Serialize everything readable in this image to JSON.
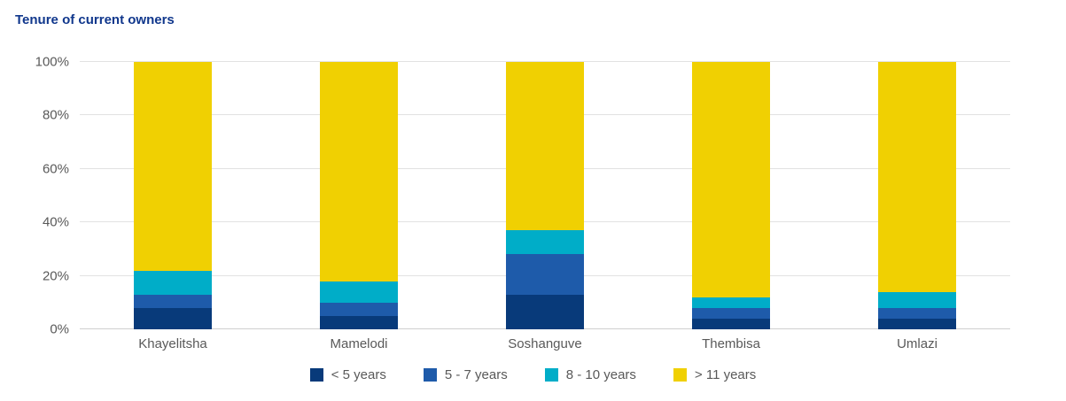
{
  "title": "Tenure of current owners",
  "colors": {
    "title": "#10378c",
    "axis_text": "#595959",
    "gridline": "#e2e2e2",
    "background": "#ffffff"
  },
  "chart_data": {
    "type": "bar",
    "stacked": true,
    "orientation": "vertical",
    "title": "Tenure of current owners",
    "xlabel": "",
    "ylabel": "",
    "ylim": [
      0,
      100
    ],
    "y_tick_values": [
      0,
      20,
      40,
      60,
      80,
      100
    ],
    "y_tick_labels": [
      "0%",
      "20%",
      "40%",
      "60%",
      "80%",
      "100%"
    ],
    "grid": true,
    "legend_position": "bottom",
    "categories": [
      "Khayelitsha",
      "Mamelodi",
      "Soshanguve",
      "Thembisa",
      "Umlazi"
    ],
    "series": [
      {
        "name": "< 5 years",
        "color": "#083a7a",
        "values": [
          8,
          5,
          13,
          4,
          4
        ]
      },
      {
        "name": "5 - 7 years",
        "color": "#1e5baa",
        "values": [
          5,
          5,
          15,
          4,
          4
        ]
      },
      {
        "name": "8 - 10 years",
        "color": "#00adc8",
        "values": [
          9,
          8,
          9,
          4,
          6
        ]
      },
      {
        "name": "> 11 years",
        "color": "#f0d002",
        "values": [
          78,
          82,
          63,
          88,
          86
        ]
      }
    ]
  }
}
